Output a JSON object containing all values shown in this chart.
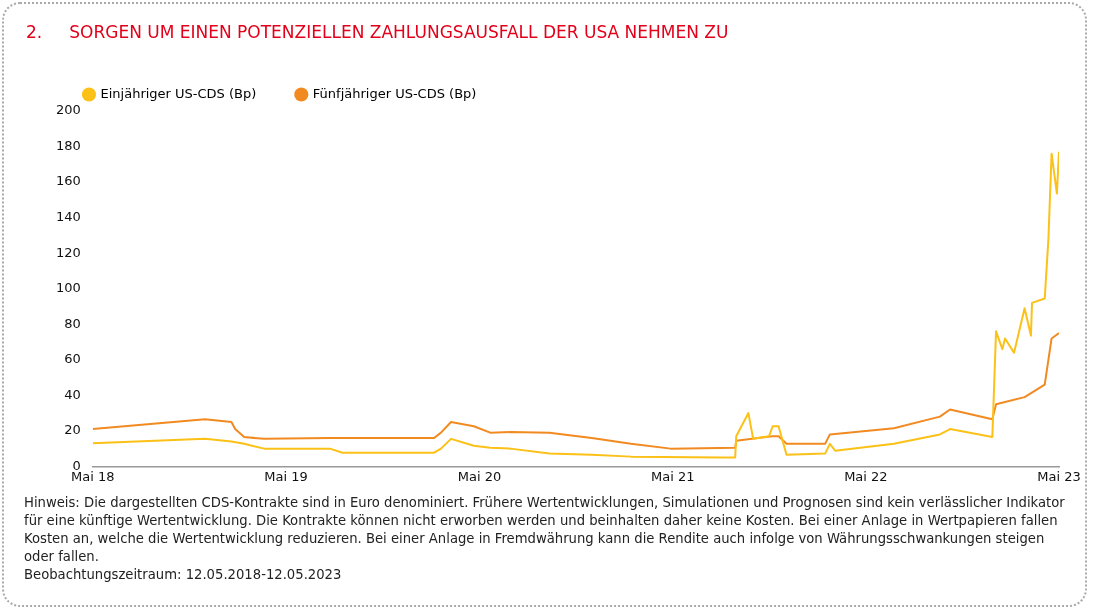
{
  "chart_data": {
    "type": "line",
    "title": "2.     SORGEN UM EINEN POTENZIELLEN ZAHLUNGSAUSFALL DER USA NEHMEN ZU",
    "xlim": [
      "2018-05-12",
      "2023-05-12"
    ],
    "xticks": [
      {
        "value": "2018-05-12",
        "label": "Mai 18"
      },
      {
        "value": "2019-05-12",
        "label": "Mai 19"
      },
      {
        "value": "2020-05-12",
        "label": "Mai 20"
      },
      {
        "value": "2021-05-12",
        "label": "Mai 21"
      },
      {
        "value": "2022-05-12",
        "label": "Mai 22"
      },
      {
        "value": "2023-05-12",
        "label": "Mai 23"
      }
    ],
    "ylim": [
      0,
      200
    ],
    "yticks": [
      0,
      20,
      40,
      60,
      80,
      100,
      120,
      140,
      160,
      180,
      200
    ],
    "legend": "top left",
    "marker": "none",
    "line_style": "solid",
    "series": [
      {
        "name": "Einjähriger US-CDS (Bp)",
        "color": "#fbc117",
        "x": [
          "2018-05-12",
          "2018-12-10",
          "2019-01-29",
          "2019-02-22",
          "2019-04-01",
          "2019-08-03",
          "2019-08-27",
          "2020-02-16",
          "2020-02-29",
          "2020-03-19",
          "2020-05-01",
          "2020-06-01",
          "2020-07-09",
          "2020-09-21",
          "2020-12-10",
          "2021-02-22",
          "2021-08-16",
          "2021-09-07",
          "2021-09-09",
          "2021-10-02",
          "2021-10-11",
          "2021-11-10",
          "2021-11-17",
          "2021-11-28",
          "2021-12-13",
          "2022-02-24",
          "2022-03-05",
          "2022-03-15",
          "2022-07-04",
          "2022-09-29",
          "2022-10-18",
          "2023-01-06",
          "2023-01-13",
          "2023-01-25",
          "2023-01-30",
          "2023-02-16",
          "2023-03-08",
          "2023-03-20",
          "2023-03-22",
          "2023-04-15",
          "2023-04-22",
          "2023-04-28",
          "2023-05-08",
          "2023-05-12"
        ],
        "values": [
          13,
          15.5,
          14,
          12.7,
          10,
          10,
          7.7,
          7.7,
          10,
          15.5,
          11.6,
          10.5,
          10,
          7.2,
          6.6,
          5.5,
          5,
          5,
          17,
          30,
          15.5,
          17,
          22.6,
          22.6,
          6.6,
          7.2,
          12.7,
          8.8,
          12.7,
          18,
          21,
          16.6,
          76,
          66,
          72,
          64,
          89,
          73.5,
          92,
          94.5,
          128,
          176,
          153.6,
          177
        ]
      },
      {
        "name": "Fünfjähriger US-CDS (Bp)",
        "color": "#f28a22",
        "x": [
          "2018-05-12",
          "2018-12-10",
          "2019-01-29",
          "2019-02-05",
          "2019-02-22",
          "2019-04-01",
          "2019-08-03",
          "2019-10-04",
          "2020-02-16",
          "2020-02-29",
          "2020-03-19",
          "2020-05-01",
          "2020-06-01",
          "2020-07-09",
          "2020-09-21",
          "2020-12-10",
          "2021-02-22",
          "2021-05-08",
          "2021-09-07",
          "2021-09-09",
          "2021-11-17",
          "2021-11-28",
          "2021-12-13",
          "2022-02-24",
          "2022-03-05",
          "2022-07-04",
          "2022-09-29",
          "2022-10-18",
          "2023-01-06",
          "2023-01-13",
          "2023-03-08",
          "2023-04-15",
          "2023-04-28",
          "2023-05-12"
        ],
        "values": [
          21,
          26.5,
          25,
          21,
          16.5,
          15.5,
          16,
          16,
          16,
          19,
          25,
          22.6,
          19,
          19.3,
          19,
          16,
          12.7,
          10,
          10.5,
          14.4,
          17,
          17,
          12.7,
          12.7,
          18,
          21.5,
          28,
          32,
          26.5,
          35,
          39,
          46,
          72,
          75
        ]
      }
    ],
    "annotations": [
      "Hinweis: Die dargestellten CDS-Kontrakte sind in Euro denominiert. Frühere Wertentwicklungen, Simulationen und Prognosen sind kein verlässlicher Indikator für eine künftige Wertentwicklung. Die Kontrakte können nicht erworben werden und beinhalten daher keine Kosten. Bei einer Anlage in Wertpapieren fallen Kosten an, welche die Wertentwicklung reduzieren. Bei einer Anlage in Fremdwährung kann die Rendite auch infolge von Währungsschwankungen steigen oder fallen.",
      "Beobachtungszeitraum: 12.05.2018-12.05.2023"
    ]
  }
}
